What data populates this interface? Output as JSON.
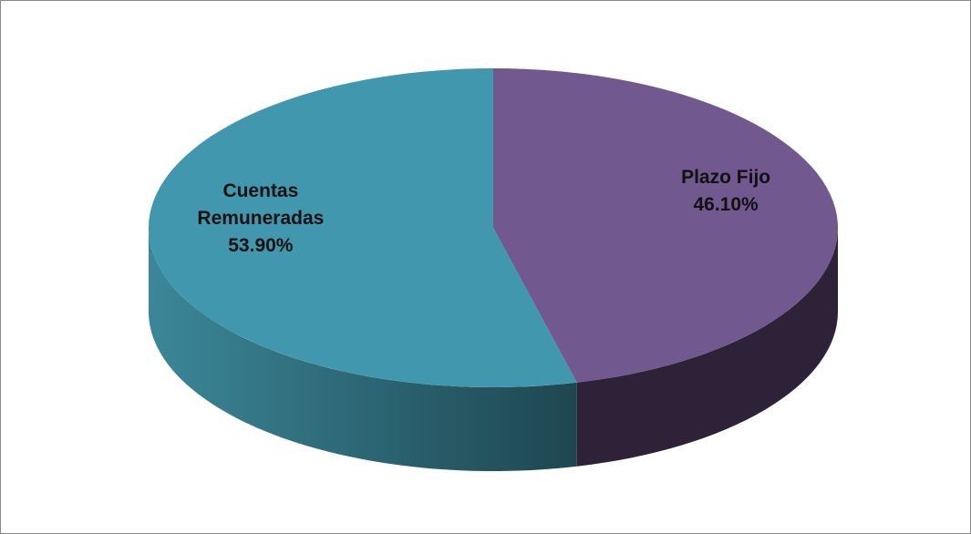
{
  "chart_data": {
    "type": "pie",
    "categories": [
      "Plazo Fijo",
      "Cuentas Remuneradas"
    ],
    "values": [
      46.1,
      53.9
    ],
    "value_labels": [
      "46.10%",
      "53.90%"
    ],
    "colors": [
      "#71588f",
      "#4197ae"
    ]
  }
}
